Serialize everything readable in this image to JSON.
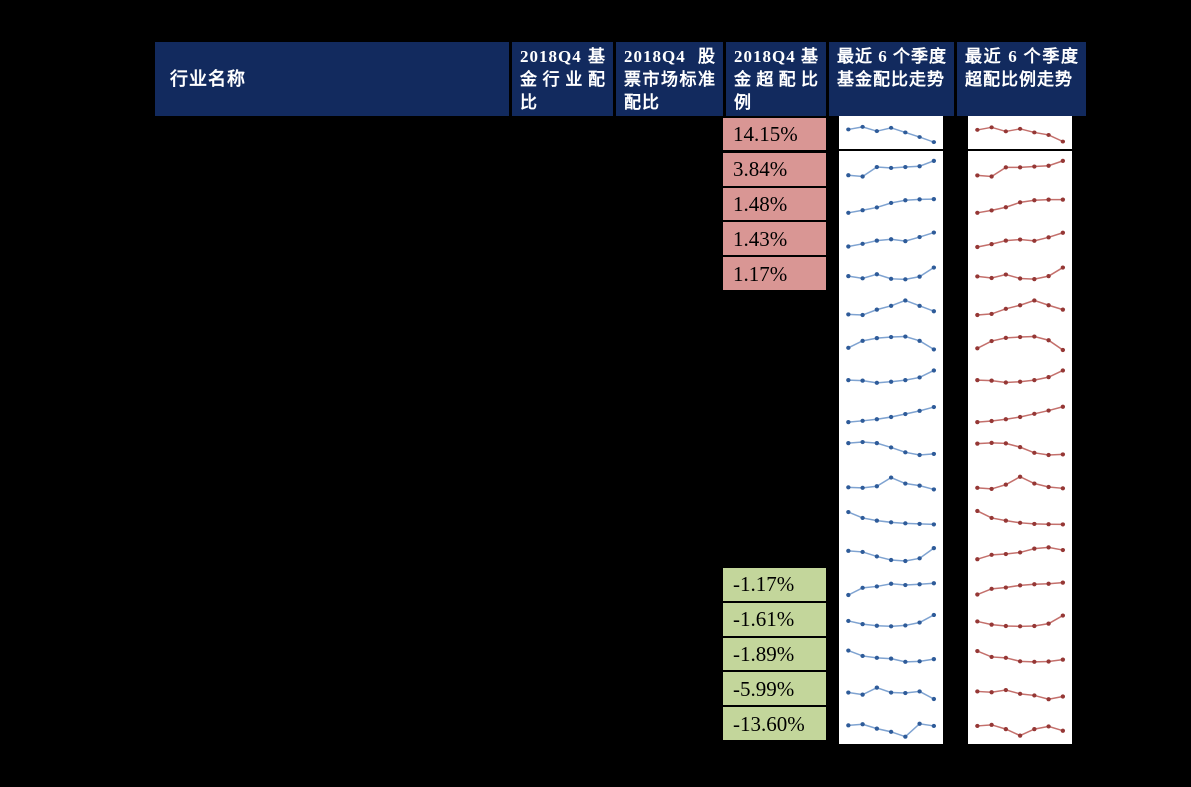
{
  "page": {
    "background": "#000000"
  },
  "header": {
    "bg": "#122A5E",
    "text_color": "#FFFFFF",
    "columns": [
      {
        "id": "industry_name",
        "label": "行业名称"
      },
      {
        "id": "fund_allocation",
        "label": "2018Q4 基金行业配比"
      },
      {
        "id": "market_standard",
        "label": "2018Q4 股票市场标准配比"
      },
      {
        "id": "fund_overweight",
        "label": "2018Q4 基金超配比例"
      },
      {
        "id": "allocation_trend",
        "label": "最近 6 个季度基金配比走势"
      },
      {
        "id": "overweight_trend",
        "label": "最近 6 个季度超配比例走势"
      }
    ]
  },
  "body": {
    "row_count": 18,
    "positive_overweight": {
      "bg": "#D99694",
      "start_row": 1,
      "values": [
        "14.15%",
        "3.84%",
        "1.48%",
        "1.43%",
        "1.17%"
      ]
    },
    "negative_overweight": {
      "bg": "#C3D69B",
      "start_row": 14,
      "values": [
        "-1.17%",
        "-1.61%",
        "-1.89%",
        "-5.99%",
        "-13.60%"
      ]
    }
  },
  "chart_data": {
    "type": "line",
    "title": "行业配比 sparklines (7 points per row, relative scale 0-100, no axes shown)",
    "legend_position": "none",
    "grid": false,
    "series": [
      {
        "name": "最近 6 个季度基金配比走势",
        "line_color": "#7FA3D1",
        "marker_color": "#2E5B99",
        "rows": [
          [
            62,
            72,
            55,
            68,
            50,
            32,
            12
          ],
          [
            25,
            20,
            55,
            52,
            55,
            58,
            78
          ],
          [
            15,
            25,
            35,
            52,
            62,
            65,
            66
          ],
          [
            20,
            30,
            42,
            47,
            40,
            55,
            72
          ],
          [
            40,
            32,
            47,
            30,
            28,
            38,
            72
          ],
          [
            24,
            22,
            42,
            56,
            76,
            56,
            36
          ],
          [
            30,
            56,
            66,
            70,
            72,
            56,
            24
          ],
          [
            40,
            38,
            30,
            34,
            40,
            50,
            76
          ],
          [
            14,
            19,
            25,
            33,
            44,
            56,
            70
          ],
          [
            66,
            70,
            66,
            50,
            32,
            22,
            26
          ],
          [
            32,
            30,
            36,
            68,
            46,
            38,
            24
          ],
          [
            70,
            48,
            38,
            32,
            28,
            26,
            24
          ],
          [
            56,
            52,
            35,
            22,
            18,
            28,
            66
          ],
          [
            18,
            45,
            50,
            60,
            55,
            58,
            62
          ],
          [
            52,
            40,
            34,
            32,
            35,
            46,
            74
          ],
          [
            72,
            52,
            45,
            42,
            30,
            32,
            40
          ],
          [
            46,
            38,
            64,
            46,
            44,
            50,
            22
          ],
          [
            54,
            58,
            42,
            30,
            12,
            60,
            52
          ]
        ]
      },
      {
        "name": "最近 6 个季度超配比例走势",
        "line_color": "#C4706C",
        "marker_color": "#953735",
        "rows": [
          [
            60,
            70,
            54,
            64,
            50,
            40,
            14
          ],
          [
            24,
            20,
            54,
            54,
            57,
            60,
            78
          ],
          [
            15,
            24,
            36,
            54,
            62,
            64,
            64
          ],
          [
            18,
            29,
            42,
            46,
            41,
            54,
            71
          ],
          [
            39,
            33,
            46,
            31,
            29,
            40,
            72
          ],
          [
            22,
            26,
            45,
            58,
            76,
            58,
            42
          ],
          [
            28,
            55,
            67,
            70,
            72,
            58,
            22
          ],
          [
            40,
            38,
            31,
            34,
            40,
            51,
            76
          ],
          [
            14,
            18,
            25,
            33,
            45,
            57,
            71
          ],
          [
            64,
            67,
            65,
            51,
            30,
            22,
            24
          ],
          [
            30,
            26,
            42,
            71,
            46,
            33,
            28
          ],
          [
            74,
            48,
            38,
            30,
            26,
            25,
            24
          ],
          [
            25,
            41,
            44,
            50,
            64,
            69,
            59
          ],
          [
            20,
            41,
            46,
            54,
            58,
            60,
            64
          ],
          [
            50,
            38,
            33,
            32,
            33,
            42,
            72
          ],
          [
            70,
            48,
            45,
            32,
            30,
            31,
            38
          ],
          [
            50,
            47,
            55,
            41,
            35,
            21,
            31
          ],
          [
            52,
            56,
            40,
            16,
            40,
            50,
            34
          ]
        ]
      }
    ]
  }
}
